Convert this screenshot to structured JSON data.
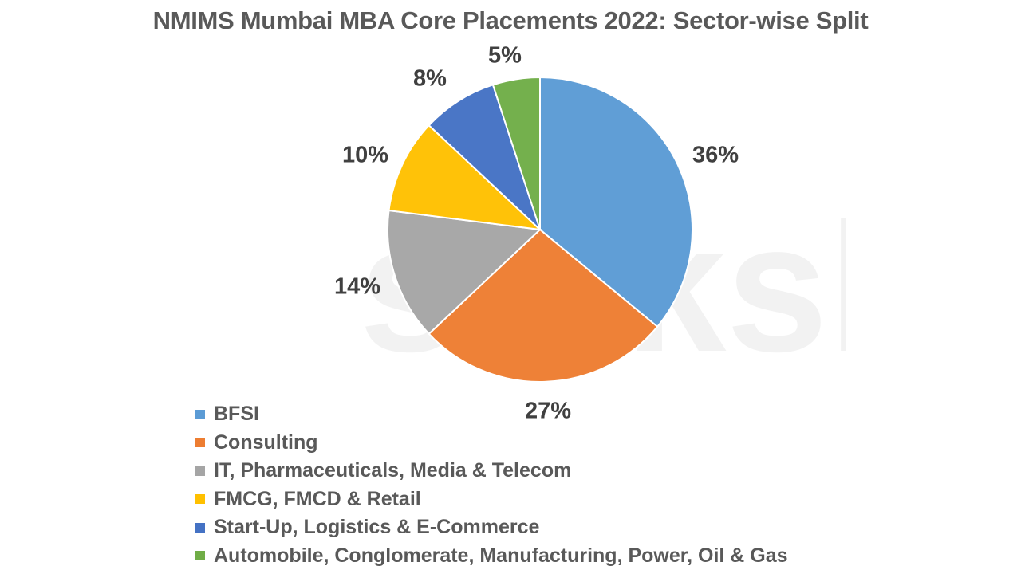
{
  "title": "NMIMS Mumbai MBA Core Placements 2022: Sector-wise Split",
  "watermark": "shiksha",
  "chart_data": {
    "type": "pie",
    "title": "NMIMS Mumbai MBA Core Placements 2022: Sector-wise Split",
    "categories": [
      "BFSI",
      "Consulting",
      "IT, Pharmaceuticals, Media & Telecom",
      "FMCG, FMCD & Retail",
      "Start-Up, Logistics & E-Commerce",
      "Automobile, Conglomerate, Manufacturing, Power, Oil & Gas"
    ],
    "values": [
      36,
      27,
      14,
      10,
      8,
      5
    ],
    "labels": [
      "36%",
      "27%",
      "14%",
      "10%",
      "8%",
      "5%"
    ],
    "colors": [
      "#5B9BD5",
      "#ED7D31",
      "#A5A5A5",
      "#FFC000",
      "#4472C4",
      "#70AD47"
    ],
    "legend_position": "bottom-left"
  },
  "legend": [
    {
      "label": "BFSI",
      "color": "#5B9BD5"
    },
    {
      "label": "Consulting",
      "color": "#ED7D31"
    },
    {
      "label": "IT, Pharmaceuticals, Media & Telecom",
      "color": "#A5A5A5"
    },
    {
      "label": "FMCG, FMCD & Retail",
      "color": "#FFC000"
    },
    {
      "label": "Start-Up, Logistics & E-Commerce",
      "color": "#4472C4"
    },
    {
      "label": "Automobile, Conglomerate, Manufacturing, Power, Oil & Gas",
      "color": "#70AD47"
    }
  ]
}
